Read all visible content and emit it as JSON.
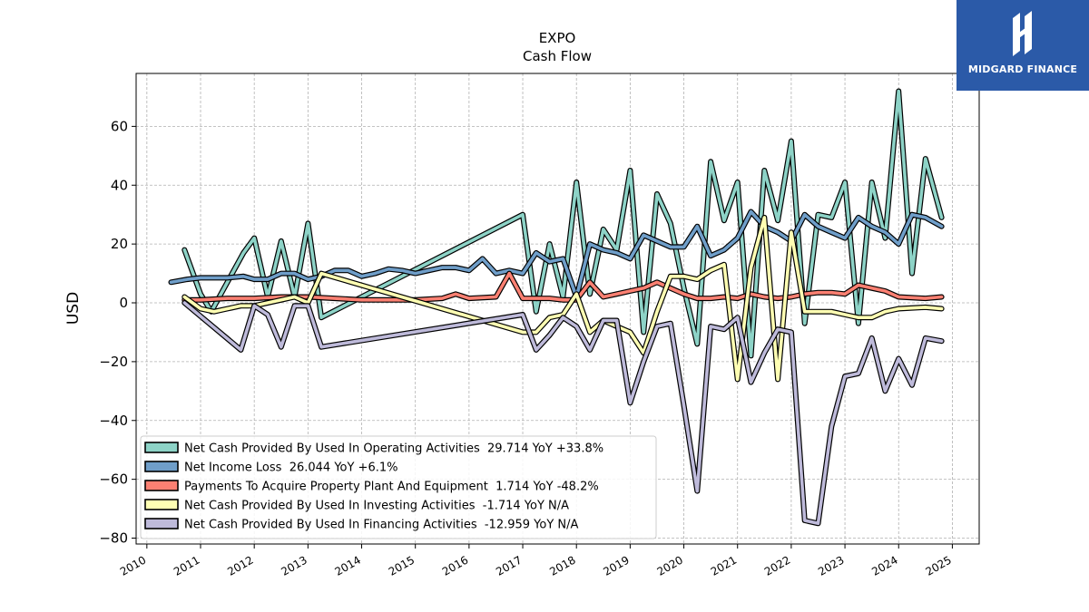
{
  "logo": {
    "text": "MIDGARD FINANCE",
    "bg_color": "#2b5aa8"
  },
  "chart_data": {
    "type": "line",
    "title": "EXPO",
    "subtitle": "Cash Flow",
    "ylabel": "USD",
    "xlabel": "",
    "ylim": [
      -82,
      78
    ],
    "xlim": [
      2009.8,
      2025.5
    ],
    "yticks": [
      -80,
      -60,
      -40,
      -20,
      0,
      20,
      40,
      60
    ],
    "xticks": [
      "2010",
      "2011",
      "2012",
      "2013",
      "2014",
      "2015",
      "2016",
      "2017",
      "2018",
      "2019",
      "2020",
      "2021",
      "2022",
      "2023",
      "2024",
      "2025"
    ],
    "grid": true,
    "legend_position": "lower-left",
    "series": [
      {
        "name": "Net Cash Provided By Used In Operating Activities",
        "legend": "Net Cash Provided By Used In Operating Activities  29.714 YoY +33.8%",
        "color": "#8dd3c7",
        "points": [
          [
            2010.7,
            18
          ],
          [
            2011.0,
            3
          ],
          [
            2011.2,
            -3
          ],
          [
            2011.8,
            17
          ],
          [
            2012.0,
            22
          ],
          [
            2012.25,
            2
          ],
          [
            2012.5,
            21
          ],
          [
            2012.75,
            2
          ],
          [
            2013.0,
            27
          ],
          [
            2013.25,
            -5
          ],
          [
            2017.0,
            30
          ],
          [
            2017.25,
            -3
          ],
          [
            2017.5,
            20
          ],
          [
            2017.75,
            2
          ],
          [
            2018.0,
            41
          ],
          [
            2018.25,
            3
          ],
          [
            2018.5,
            25
          ],
          [
            2018.75,
            18
          ],
          [
            2019.0,
            45
          ],
          [
            2019.25,
            -10
          ],
          [
            2019.5,
            37
          ],
          [
            2019.75,
            27
          ],
          [
            2020.0,
            5
          ],
          [
            2020.25,
            -14
          ],
          [
            2020.5,
            48
          ],
          [
            2020.75,
            28
          ],
          [
            2021.0,
            41
          ],
          [
            2021.25,
            -18
          ],
          [
            2021.5,
            45
          ],
          [
            2021.75,
            28
          ],
          [
            2022.0,
            55
          ],
          [
            2022.25,
            -7
          ],
          [
            2022.5,
            30
          ],
          [
            2022.75,
            29
          ],
          [
            2023.0,
            41
          ],
          [
            2023.25,
            -7
          ],
          [
            2023.5,
            41
          ],
          [
            2023.75,
            22
          ],
          [
            2024.0,
            72
          ],
          [
            2024.25,
            10
          ],
          [
            2024.5,
            49
          ],
          [
            2024.8,
            29
          ]
        ]
      },
      {
        "name": "Net Income Loss",
        "legend": "Net Income Loss  26.044 YoY +6.1%",
        "color": "#6f9ec9",
        "points": [
          [
            2010.45,
            7
          ],
          [
            2010.75,
            8
          ],
          [
            2011.0,
            8.5
          ],
          [
            2011.5,
            8.5
          ],
          [
            2011.8,
            9
          ],
          [
            2012.0,
            8
          ],
          [
            2012.25,
            8
          ],
          [
            2012.5,
            10
          ],
          [
            2012.75,
            10
          ],
          [
            2013.0,
            8
          ],
          [
            2013.25,
            9
          ],
          [
            2013.5,
            11
          ],
          [
            2013.75,
            11
          ],
          [
            2014.0,
            9
          ],
          [
            2014.25,
            10
          ],
          [
            2014.5,
            11.5
          ],
          [
            2014.75,
            11
          ],
          [
            2015.0,
            10
          ],
          [
            2015.25,
            11
          ],
          [
            2015.5,
            12
          ],
          [
            2015.75,
            12
          ],
          [
            2016.0,
            11
          ],
          [
            2016.25,
            15
          ],
          [
            2016.5,
            10
          ],
          [
            2016.75,
            11
          ],
          [
            2017.0,
            10
          ],
          [
            2017.25,
            17
          ],
          [
            2017.5,
            14
          ],
          [
            2017.75,
            15
          ],
          [
            2018.0,
            2
          ],
          [
            2018.25,
            20
          ],
          [
            2018.5,
            18
          ],
          [
            2018.75,
            17
          ],
          [
            2019.0,
            15
          ],
          [
            2019.25,
            23
          ],
          [
            2019.5,
            21
          ],
          [
            2019.75,
            19
          ],
          [
            2020.0,
            19
          ],
          [
            2020.25,
            26
          ],
          [
            2020.5,
            16
          ],
          [
            2020.75,
            18
          ],
          [
            2021.0,
            22
          ],
          [
            2021.25,
            31
          ],
          [
            2021.5,
            26
          ],
          [
            2021.75,
            24
          ],
          [
            2022.0,
            21
          ],
          [
            2022.25,
            30
          ],
          [
            2022.5,
            26
          ],
          [
            2022.75,
            24
          ],
          [
            2023.0,
            22
          ],
          [
            2023.25,
            29
          ],
          [
            2023.5,
            26
          ],
          [
            2023.75,
            24
          ],
          [
            2024.0,
            20
          ],
          [
            2024.25,
            30
          ],
          [
            2024.5,
            29
          ],
          [
            2024.8,
            26
          ]
        ]
      },
      {
        "name": "Payments To Acquire Property Plant And Equipment",
        "legend": "Payments To Acquire Property Plant And Equipment  1.714 YoY -48.2%",
        "color": "#fb8072",
        "points": [
          [
            2010.7,
            1
          ],
          [
            2011.0,
            1
          ],
          [
            2011.5,
            1.5
          ],
          [
            2012.0,
            1.5
          ],
          [
            2012.5,
            2
          ],
          [
            2013.0,
            2
          ],
          [
            2013.5,
            1.5
          ],
          [
            2014.0,
            1
          ],
          [
            2014.5,
            1
          ],
          [
            2015.0,
            1
          ],
          [
            2015.5,
            1.5
          ],
          [
            2015.75,
            3
          ],
          [
            2016.0,
            1.5
          ],
          [
            2016.5,
            2
          ],
          [
            2016.75,
            10
          ],
          [
            2017.0,
            1.5
          ],
          [
            2017.5,
            1.5
          ],
          [
            2017.75,
            1
          ],
          [
            2018.0,
            1
          ],
          [
            2018.25,
            7
          ],
          [
            2018.5,
            2
          ],
          [
            2018.75,
            3
          ],
          [
            2019.0,
            4
          ],
          [
            2019.25,
            5
          ],
          [
            2019.5,
            7
          ],
          [
            2019.75,
            5
          ],
          [
            2020.0,
            3
          ],
          [
            2020.25,
            1.5
          ],
          [
            2020.5,
            1.5
          ],
          [
            2020.75,
            2
          ],
          [
            2021.0,
            1.5
          ],
          [
            2021.25,
            3
          ],
          [
            2021.5,
            2
          ],
          [
            2021.75,
            1.5
          ],
          [
            2022.0,
            2
          ],
          [
            2022.25,
            3
          ],
          [
            2022.5,
            3.5
          ],
          [
            2022.75,
            3.5
          ],
          [
            2023.0,
            3
          ],
          [
            2023.25,
            6
          ],
          [
            2023.5,
            5
          ],
          [
            2023.75,
            4
          ],
          [
            2024.0,
            2
          ],
          [
            2024.5,
            1.5
          ],
          [
            2024.8,
            2
          ]
        ]
      },
      {
        "name": "Net Cash Provided By Used In Investing Activities",
        "legend": "Net Cash Provided By Used In Investing Activities  -1.714 YoY N/A",
        "color": "#ffffb3",
        "points": [
          [
            2010.7,
            2
          ],
          [
            2011.0,
            -2
          ],
          [
            2011.25,
            -3
          ],
          [
            2011.5,
            -2
          ],
          [
            2011.75,
            -1
          ],
          [
            2012.0,
            -1
          ],
          [
            2012.5,
            1
          ],
          [
            2012.75,
            2
          ],
          [
            2013.0,
            0
          ],
          [
            2013.25,
            10
          ],
          [
            2017.0,
            -10
          ],
          [
            2017.25,
            -10
          ],
          [
            2017.5,
            -5
          ],
          [
            2017.75,
            -4
          ],
          [
            2018.0,
            3
          ],
          [
            2018.25,
            -10
          ],
          [
            2018.5,
            -6
          ],
          [
            2018.75,
            -8
          ],
          [
            2019.0,
            -10
          ],
          [
            2019.25,
            -17
          ],
          [
            2019.5,
            -3
          ],
          [
            2019.75,
            9
          ],
          [
            2020.0,
            9
          ],
          [
            2020.25,
            8
          ],
          [
            2020.5,
            11
          ],
          [
            2020.75,
            13
          ],
          [
            2021.0,
            -26
          ],
          [
            2021.25,
            12
          ],
          [
            2021.5,
            29
          ],
          [
            2021.75,
            -26
          ],
          [
            2022.0,
            24
          ],
          [
            2022.25,
            -3
          ],
          [
            2022.5,
            -3
          ],
          [
            2022.75,
            -3
          ],
          [
            2023.0,
            -4
          ],
          [
            2023.25,
            -5
          ],
          [
            2023.5,
            -5
          ],
          [
            2023.75,
            -3
          ],
          [
            2024.0,
            -2
          ],
          [
            2024.5,
            -1.5
          ],
          [
            2024.8,
            -2
          ]
        ]
      },
      {
        "name": "Net Cash Provided By Used In Financing Activities",
        "legend": "Net Cash Provided By Used In Financing Activities  -12.959 YoY N/A",
        "color": "#bebada",
        "points": [
          [
            2010.7,
            0
          ],
          [
            2011.75,
            -16
          ],
          [
            2012.0,
            -1
          ],
          [
            2012.25,
            -4
          ],
          [
            2012.5,
            -15
          ],
          [
            2012.75,
            -1
          ],
          [
            2013.0,
            -1
          ],
          [
            2013.25,
            -15
          ],
          [
            2017.0,
            -4
          ],
          [
            2017.25,
            -16
          ],
          [
            2017.5,
            -11
          ],
          [
            2017.75,
            -5
          ],
          [
            2018.0,
            -8
          ],
          [
            2018.25,
            -16
          ],
          [
            2018.5,
            -6
          ],
          [
            2018.75,
            -6
          ],
          [
            2019.0,
            -34
          ],
          [
            2019.25,
            -20
          ],
          [
            2019.5,
            -8
          ],
          [
            2019.75,
            -7
          ],
          [
            2020.0,
            -35
          ],
          [
            2020.25,
            -64
          ],
          [
            2020.5,
            -8
          ],
          [
            2020.75,
            -9
          ],
          [
            2021.0,
            -5
          ],
          [
            2021.25,
            -27
          ],
          [
            2021.5,
            -17
          ],
          [
            2021.75,
            -9
          ],
          [
            2022.0,
            -10
          ],
          [
            2022.25,
            -74
          ],
          [
            2022.5,
            -75
          ],
          [
            2022.75,
            -42
          ],
          [
            2023.0,
            -25
          ],
          [
            2023.25,
            -24
          ],
          [
            2023.5,
            -12
          ],
          [
            2023.75,
            -30
          ],
          [
            2024.0,
            -19
          ],
          [
            2024.25,
            -28
          ],
          [
            2024.5,
            -12
          ],
          [
            2024.8,
            -13
          ]
        ]
      }
    ]
  }
}
